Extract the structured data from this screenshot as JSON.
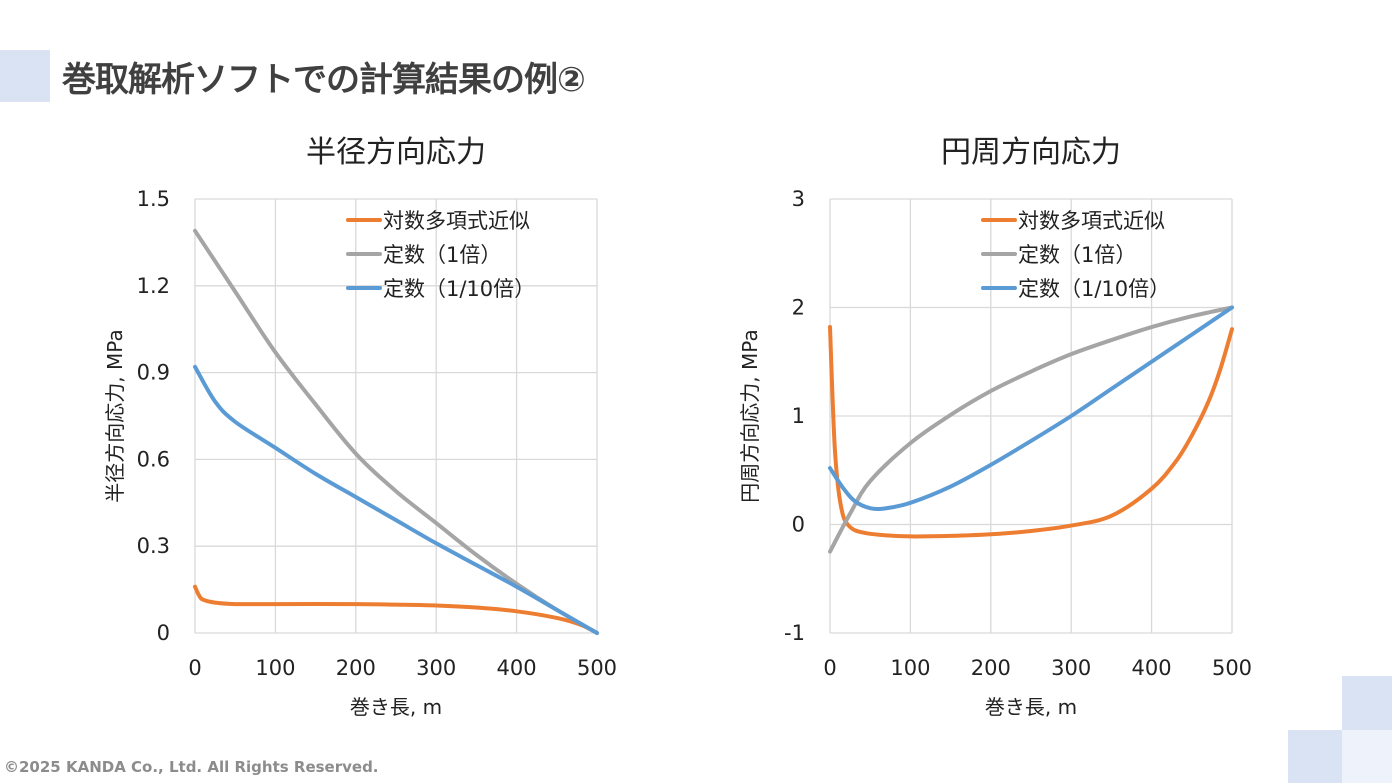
{
  "slide": {
    "title": "巻取解析ソフトでの計算結果の例②",
    "footer": "©2025 KANDA Co., Ltd. All Rights Reserved."
  },
  "colors": {
    "orange": "#ed7d31",
    "gray": "#a5a5a5",
    "blue": "#5b9bd5",
    "grid": "#d9d9d9",
    "decor": "#dae3f3"
  },
  "chart_data": [
    {
      "type": "line",
      "title": "半径方向応力",
      "xlabel": "巻き長, m",
      "ylabel": "半径方向応力, MPa",
      "xlim": [
        0,
        500
      ],
      "ylim": [
        0,
        1.5
      ],
      "xticks": [
        "0",
        "100",
        "200",
        "300",
        "400",
        "500"
      ],
      "yticks": [
        "0",
        "0.3",
        "0.6",
        "0.9",
        "1.2",
        "1.5"
      ],
      "grid": true,
      "legend": "top-right",
      "series": [
        {
          "name": "対数多項式近似",
          "color": "#ed7d31",
          "x": [
            0,
            5,
            10,
            25,
            50,
            100,
            200,
            250,
            300,
            350,
            400,
            450,
            480,
            500
          ],
          "y": [
            0.16,
            0.13,
            0.115,
            0.105,
            0.1,
            0.1,
            0.1,
            0.098,
            0.095,
            0.088,
            0.075,
            0.052,
            0.028,
            0
          ]
        },
        {
          "name": "定数（1倍）",
          "color": "#a5a5a5",
          "x": [
            0,
            50,
            100,
            150,
            200,
            250,
            300,
            350,
            400,
            450,
            500
          ],
          "y": [
            1.39,
            1.18,
            0.97,
            0.79,
            0.62,
            0.49,
            0.38,
            0.27,
            0.17,
            0.08,
            0
          ]
        },
        {
          "name": "定数（1/10倍）",
          "color": "#5b9bd5",
          "x": [
            0,
            25,
            50,
            100,
            150,
            200,
            250,
            300,
            350,
            400,
            450,
            500
          ],
          "y": [
            0.92,
            0.8,
            0.73,
            0.64,
            0.55,
            0.47,
            0.39,
            0.31,
            0.235,
            0.16,
            0.08,
            0
          ]
        }
      ]
    },
    {
      "type": "line",
      "title": "円周方向応力",
      "xlabel": "巻き長, m",
      "ylabel": "円周方向応力, MPa",
      "xlim": [
        0,
        500
      ],
      "ylim": [
        -1,
        3
      ],
      "xticks": [
        "0",
        "100",
        "200",
        "300",
        "400",
        "500"
      ],
      "yticks": [
        "-1",
        "0",
        "1",
        "2",
        "3"
      ],
      "grid": true,
      "legend": "top-right",
      "series": [
        {
          "name": "対数多項式近似",
          "color": "#ed7d31",
          "x": [
            0,
            3,
            6,
            10,
            15,
            20,
            30,
            45,
            70,
            100,
            150,
            200,
            250,
            300,
            350,
            400,
            430,
            450,
            470,
            485,
            500
          ],
          "y": [
            1.82,
            1.2,
            0.7,
            0.35,
            0.12,
            0.02,
            -0.05,
            -0.08,
            -0.1,
            -0.11,
            -0.105,
            -0.09,
            -0.06,
            -0.01,
            0.08,
            0.33,
            0.58,
            0.82,
            1.12,
            1.42,
            1.8
          ]
        },
        {
          "name": "定数（1倍）",
          "color": "#a5a5a5",
          "x": [
            0,
            25,
            50,
            100,
            150,
            200,
            250,
            300,
            350,
            400,
            450,
            500
          ],
          "y": [
            -0.25,
            0.1,
            0.4,
            0.75,
            1.01,
            1.23,
            1.41,
            1.57,
            1.7,
            1.82,
            1.92,
            2.0
          ]
        },
        {
          "name": "定数（1/10倍）",
          "color": "#5b9bd5",
          "x": [
            0,
            15,
            30,
            50,
            70,
            100,
            150,
            200,
            250,
            300,
            350,
            400,
            450,
            500
          ],
          "y": [
            0.52,
            0.35,
            0.22,
            0.15,
            0.15,
            0.2,
            0.35,
            0.55,
            0.77,
            1.0,
            1.25,
            1.5,
            1.75,
            2.0
          ]
        }
      ]
    }
  ]
}
